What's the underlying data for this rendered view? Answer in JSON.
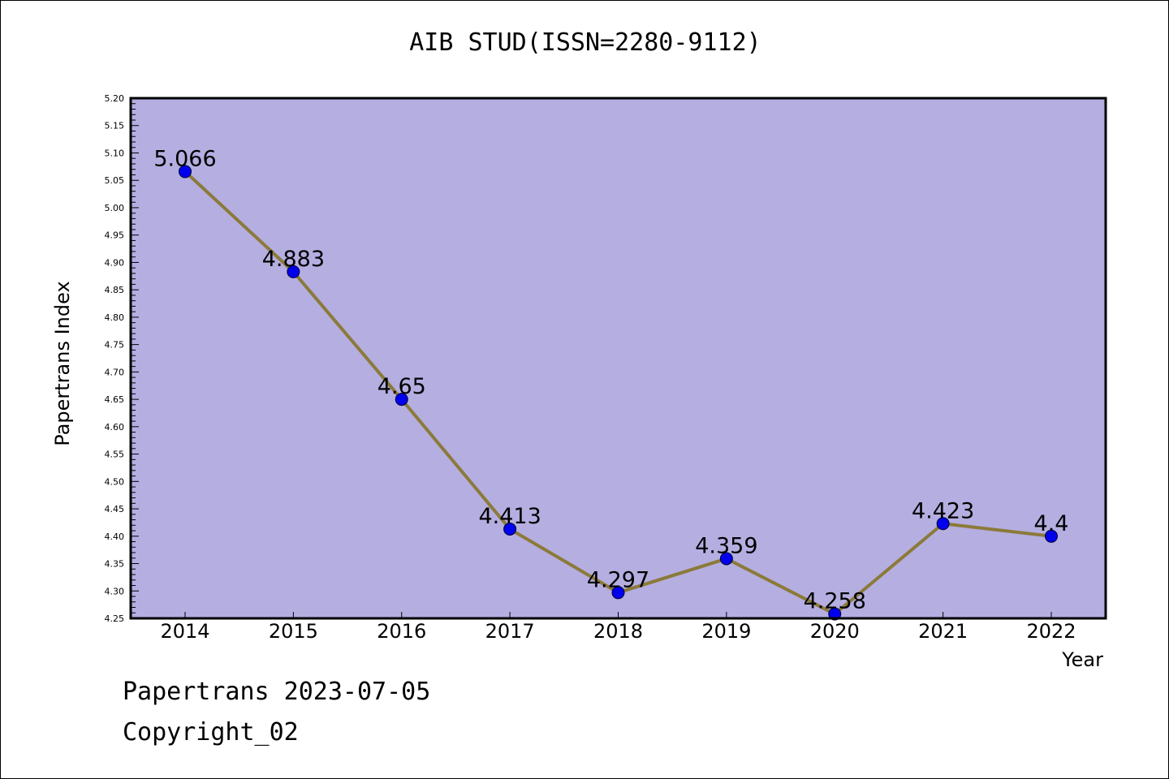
{
  "chart_data": {
    "type": "line",
    "title": "AIB STUD(ISSN=2280-9112)",
    "xlabel": "Year",
    "ylabel": "Papertrans Index",
    "categories": [
      "2014",
      "2015",
      "2016",
      "2017",
      "2018",
      "2019",
      "2020",
      "2021",
      "2022"
    ],
    "values": [
      5.066,
      4.883,
      4.65,
      4.413,
      4.297,
      4.359,
      4.258,
      4.423,
      4.4
    ],
    "data_labels": [
      "5.066",
      "4.883",
      "4.65",
      "4.413",
      "4.297",
      "4.359",
      "4.258",
      "4.423",
      "4.4"
    ],
    "ylim": [
      4.25,
      5.2
    ],
    "yticks": [
      "4.25",
      "4.30",
      "4.35",
      "4.40",
      "4.45",
      "4.50",
      "4.55",
      "4.60",
      "4.65",
      "4.70",
      "4.75",
      "4.80",
      "4.85",
      "4.90",
      "4.95",
      "5.00",
      "5.05",
      "5.10",
      "5.15",
      "5.20"
    ],
    "grid": false,
    "legend": "none",
    "colors": {
      "plot_background": "#b5aee1",
      "line": "#8b7a3a",
      "marker": "#0000ee",
      "axis": "#000000"
    }
  },
  "footer": {
    "line1": "Papertrans 2023-07-05",
    "line2": "Copyright_02"
  }
}
